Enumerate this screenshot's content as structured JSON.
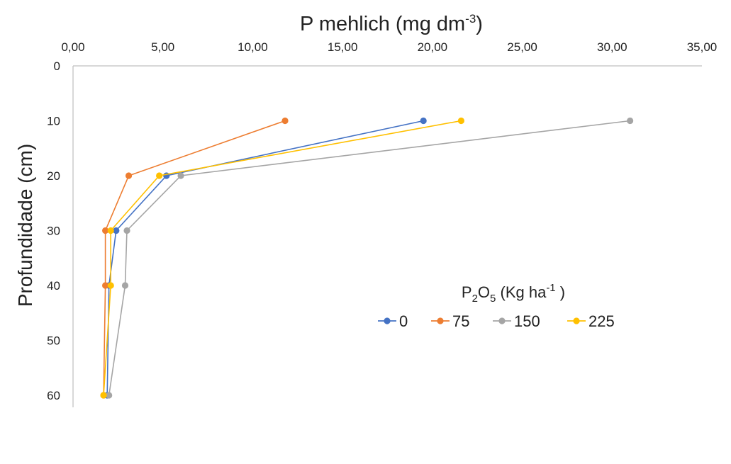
{
  "chart_data": {
    "type": "line",
    "title_main": "P mehlich (mg dm",
    "title_sup": "-3",
    "title_end": ")",
    "ylabel": "Profundidade (cm)",
    "x_axis_position": "top",
    "y_axis_inverted": true,
    "xlim": [
      0,
      35
    ],
    "ylim": [
      0,
      62
    ],
    "x_ticks": [
      0,
      5,
      10,
      15,
      20,
      25,
      30,
      35
    ],
    "x_tick_labels": [
      "0,00",
      "5,00",
      "10,00",
      "15,00",
      "20,00",
      "25,00",
      "30,00",
      "35,00"
    ],
    "y_ticks": [
      0,
      10,
      20,
      30,
      40,
      50,
      60
    ],
    "y_tick_labels": [
      "0",
      "10",
      "20",
      "30",
      "40",
      "50",
      "60"
    ],
    "grid": false,
    "legend": {
      "placement": "center-right",
      "title_main": "P",
      "title_sub1": "2",
      "title_mid": "O",
      "title_sub2": "5",
      "title_unit": " (Kg ha",
      "title_sup": "-1",
      "title_end": " )"
    },
    "depth": [
      10,
      20,
      30,
      40,
      60
    ],
    "series": [
      {
        "name": "0",
        "color": "#4472C4",
        "values": [
          19.5,
          5.2,
          2.4,
          2.0,
          1.9
        ]
      },
      {
        "name": "75",
        "color": "#ED7D31",
        "values": [
          11.8,
          3.1,
          1.8,
          1.8,
          1.7
        ]
      },
      {
        "name": "150",
        "color": "#A5A5A5",
        "values": [
          31.0,
          6.0,
          3.0,
          2.9,
          2.0
        ]
      },
      {
        "name": "225",
        "color": "#FFC000",
        "values": [
          21.6,
          4.8,
          2.1,
          2.1,
          1.7
        ]
      }
    ]
  }
}
